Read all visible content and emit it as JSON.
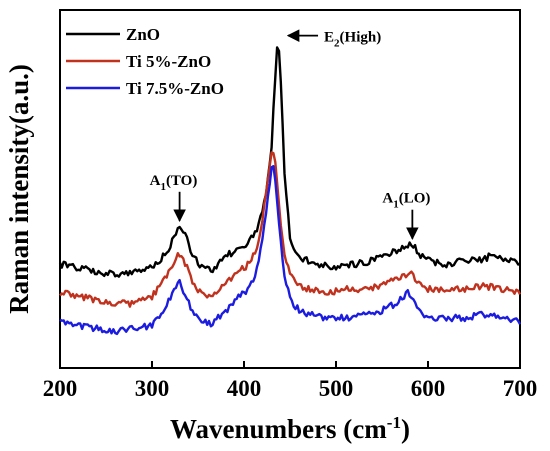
{
  "chart_data": {
    "type": "line",
    "xlabel": "Wavenumbers (cm",
    "xlabel_sup": "-1",
    "xlabel_close": ")",
    "ylabel": "Raman intensity(a.u.)",
    "xlim": [
      200,
      700
    ],
    "ylim": [
      0,
      100
    ],
    "x_ticks": [
      "200",
      "300",
      "400",
      "500",
      "600",
      "700"
    ],
    "y_ticks_visible": false,
    "grid": false,
    "legend_position": "top-left",
    "series": [
      {
        "name": "ZnO",
        "color": "#000000",
        "points": [
          [
            200,
            29
          ],
          [
            220,
            28
          ],
          [
            240,
            27
          ],
          [
            260,
            26
          ],
          [
            280,
            27
          ],
          [
            300,
            28
          ],
          [
            315,
            32
          ],
          [
            325,
            37
          ],
          [
            330,
            40
          ],
          [
            335,
            38
          ],
          [
            345,
            31
          ],
          [
            355,
            28
          ],
          [
            365,
            27
          ],
          [
            375,
            30
          ],
          [
            385,
            32
          ],
          [
            395,
            33
          ],
          [
            405,
            35
          ],
          [
            415,
            39
          ],
          [
            425,
            50
          ],
          [
            430,
            62
          ],
          [
            434,
            82
          ],
          [
            437,
            92
          ],
          [
            440,
            80
          ],
          [
            444,
            55
          ],
          [
            450,
            36
          ],
          [
            460,
            31
          ],
          [
            480,
            29
          ],
          [
            500,
            28
          ],
          [
            520,
            29
          ],
          [
            540,
            30
          ],
          [
            560,
            32
          ],
          [
            575,
            34
          ],
          [
            582,
            35
          ],
          [
            590,
            32
          ],
          [
            600,
            30
          ],
          [
            620,
            29
          ],
          [
            640,
            30
          ],
          [
            660,
            30
          ],
          [
            670,
            32
          ],
          [
            680,
            31
          ],
          [
            700,
            29
          ]
        ]
      },
      {
        "name": "Ti 5%-ZnO",
        "color": "#c0321e",
        "points": [
          [
            200,
            21
          ],
          [
            220,
            20
          ],
          [
            240,
            19
          ],
          [
            260,
            18
          ],
          [
            280,
            18
          ],
          [
            300,
            20
          ],
          [
            315,
            25
          ],
          [
            325,
            30
          ],
          [
            330,
            32
          ],
          [
            335,
            30
          ],
          [
            345,
            23
          ],
          [
            355,
            21
          ],
          [
            365,
            20
          ],
          [
            375,
            23
          ],
          [
            385,
            25
          ],
          [
            395,
            27
          ],
          [
            405,
            29
          ],
          [
            415,
            34
          ],
          [
            422,
            45
          ],
          [
            427,
            55
          ],
          [
            431,
            62
          ],
          [
            434,
            58
          ],
          [
            438,
            45
          ],
          [
            445,
            30
          ],
          [
            455,
            24
          ],
          [
            470,
            22
          ],
          [
            490,
            21
          ],
          [
            510,
            22
          ],
          [
            530,
            22
          ],
          [
            550,
            23
          ],
          [
            565,
            25
          ],
          [
            575,
            26
          ],
          [
            580,
            27
          ],
          [
            590,
            24
          ],
          [
            600,
            22
          ],
          [
            620,
            22
          ],
          [
            640,
            22
          ],
          [
            660,
            23
          ],
          [
            680,
            22
          ],
          [
            700,
            21
          ]
        ]
      },
      {
        "name": "Ti 7.5%-ZnO",
        "color": "#1c1ce0",
        "points": [
          [
            200,
            13
          ],
          [
            220,
            12
          ],
          [
            240,
            11
          ],
          [
            260,
            10
          ],
          [
            280,
            11
          ],
          [
            300,
            12
          ],
          [
            315,
            17
          ],
          [
            325,
            22
          ],
          [
            330,
            24
          ],
          [
            335,
            21
          ],
          [
            345,
            15
          ],
          [
            355,
            13
          ],
          [
            365,
            12
          ],
          [
            375,
            15
          ],
          [
            385,
            17
          ],
          [
            395,
            20
          ],
          [
            405,
            22
          ],
          [
            415,
            28
          ],
          [
            422,
            40
          ],
          [
            427,
            50
          ],
          [
            431,
            57
          ],
          [
            434,
            53
          ],
          [
            438,
            40
          ],
          [
            445,
            24
          ],
          [
            455,
            17
          ],
          [
            470,
            15
          ],
          [
            490,
            14
          ],
          [
            510,
            14
          ],
          [
            530,
            15
          ],
          [
            550,
            16
          ],
          [
            565,
            18
          ],
          [
            575,
            20
          ],
          [
            578,
            21
          ],
          [
            590,
            16
          ],
          [
            600,
            14
          ],
          [
            620,
            14
          ],
          [
            640,
            14
          ],
          [
            660,
            15
          ],
          [
            680,
            14
          ],
          [
            700,
            13
          ]
        ]
      }
    ],
    "annotations": [
      {
        "id": "e2",
        "text": "E",
        "sub": "2",
        "rest": "(High)",
        "x": 437,
        "y": 92
      },
      {
        "id": "a1to",
        "text": "A",
        "sub": "1",
        "rest": "(TO)",
        "x": 330,
        "y": 40
      },
      {
        "id": "a1lo",
        "text": "A",
        "sub": "1",
        "rest": "(LO)",
        "x": 583,
        "y": 35
      }
    ]
  }
}
